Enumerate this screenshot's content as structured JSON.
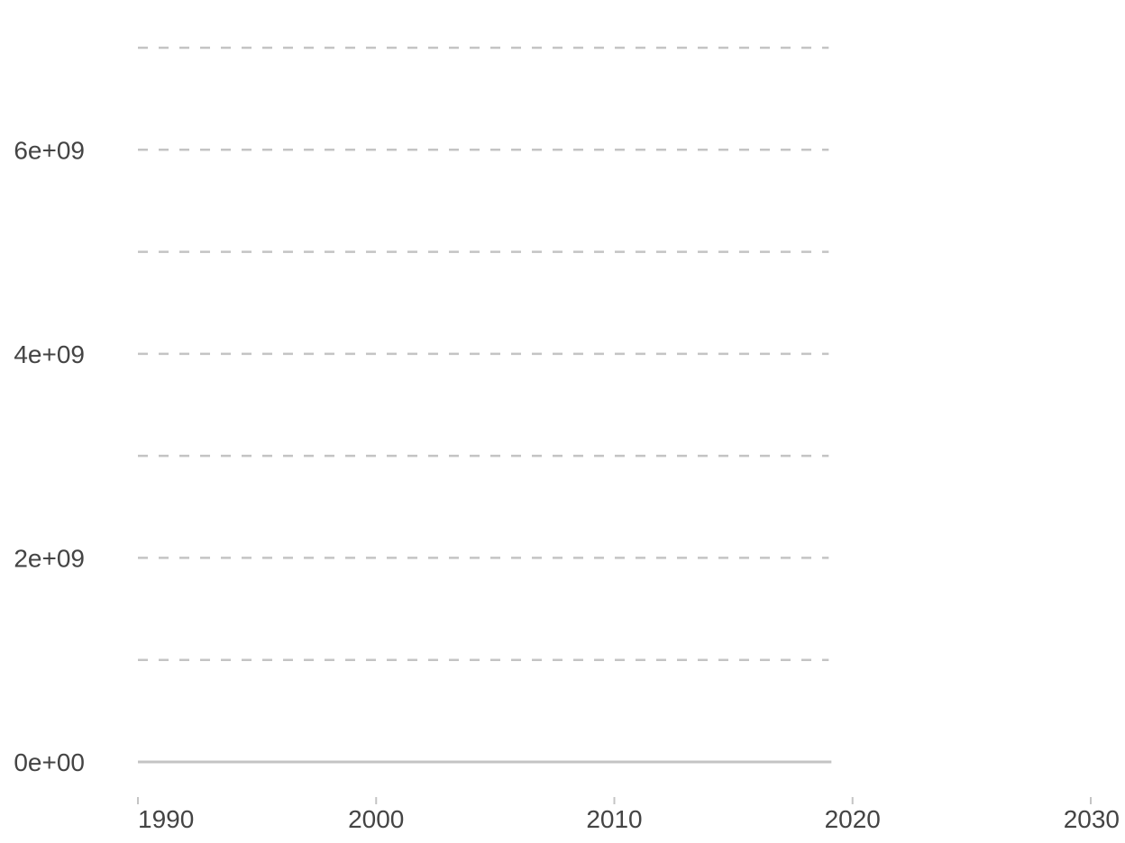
{
  "chart_data": {
    "type": "line",
    "title": "",
    "xlabel": "",
    "ylabel": "",
    "xlim": [
      1990,
      2030
    ],
    "ylim": [
      0,
      7000000000
    ],
    "grid_data_extent": [
      1990,
      2019
    ],
    "x_ticks": [
      {
        "value": 1990,
        "label": "1990"
      },
      {
        "value": 2000,
        "label": "2000"
      },
      {
        "value": 2010,
        "label": "2010"
      },
      {
        "value": 2020,
        "label": "2020"
      },
      {
        "value": 2030,
        "label": "2030"
      }
    ],
    "y_ticks": [
      {
        "value": 0,
        "label": "0e+00"
      },
      {
        "value": 2000000000,
        "label": "2e+09"
      },
      {
        "value": 4000000000,
        "label": "4e+09"
      },
      {
        "value": 6000000000,
        "label": "6e+09"
      }
    ],
    "y_minor_gridlines": [
      1000000000,
      3000000000,
      5000000000,
      7000000000
    ],
    "series": [],
    "colors": {
      "grid": "#c4c4c4",
      "text": "#444444",
      "background": "#ffffff"
    }
  }
}
